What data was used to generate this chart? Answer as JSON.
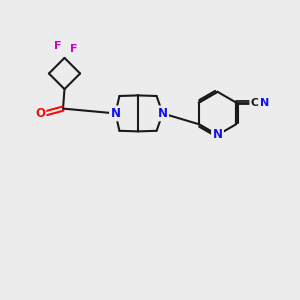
{
  "background_color": "#ececec",
  "bond_color": "#1a1a1a",
  "N_color": "#1010ee",
  "O_color": "#ee1010",
  "F_color": "#cc00cc",
  "CN_color": "#1a1a1a",
  "figsize": [
    3.0,
    3.0
  ],
  "dpi": 100,
  "xlim": [
    0,
    10
  ],
  "ylim": [
    0,
    10
  ]
}
